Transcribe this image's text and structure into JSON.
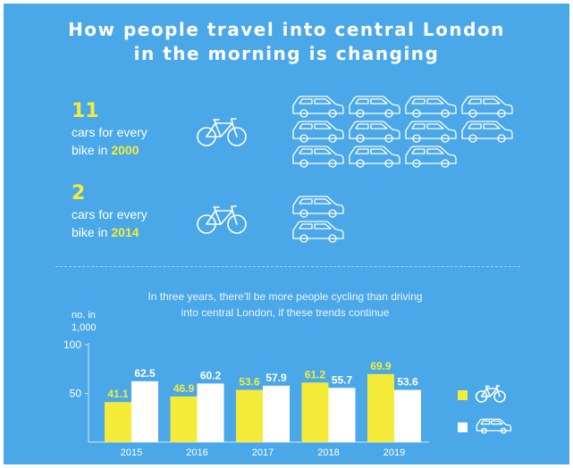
{
  "title_line1": "How people travel into central London",
  "title_line2": "in the morning is changing",
  "stats": [
    {
      "number": "11",
      "line1": "cars for every",
      "line2_prefix": "bike in ",
      "year": "2000",
      "cars": 11,
      "bikes": 1
    },
    {
      "number": "2",
      "line1": "cars for every",
      "line2_prefix": "bike in ",
      "year": "2014",
      "cars": 2,
      "bikes": 1
    }
  ],
  "subtitle_line1": "In three years, there'll be more people cycling than driving",
  "subtitle_line2": "into central London, if these trends continue",
  "colors": {
    "background": "#4aa8e8",
    "cycling": "#f5ec3a",
    "driving": "#ffffff"
  },
  "chart_data": {
    "type": "bar",
    "ylabel": "no. in 1,000",
    "ylabel_lines": [
      "no. in",
      "1,000"
    ],
    "ylim": [
      0,
      100
    ],
    "yticks": [
      50,
      100
    ],
    "categories": [
      "2015",
      "2016",
      "2017",
      "2018",
      "2019"
    ],
    "series": [
      {
        "icon": "bicycle-icon",
        "color": "#f5ec3a",
        "values": [
          41.1,
          46.9,
          53.6,
          61.2,
          69.9
        ]
      },
      {
        "icon": "car-icon",
        "color": "#ffffff",
        "values": [
          62.5,
          60.2,
          57.9,
          55.7,
          53.6
        ]
      }
    ],
    "legend_placement": "right",
    "grid": false
  }
}
